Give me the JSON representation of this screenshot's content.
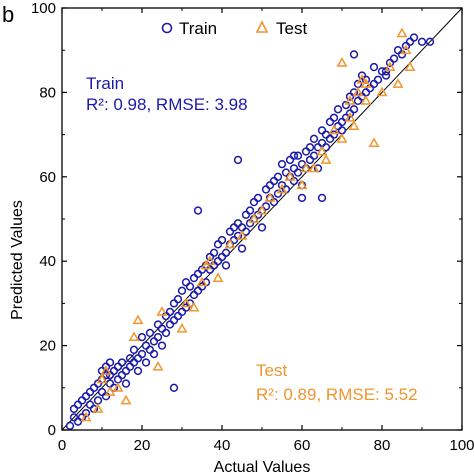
{
  "chart_data": {
    "type": "scatter",
    "panel_label": "b",
    "title": "",
    "xlabel": "Actual Values",
    "ylabel": "Predicted Values",
    "xlim": [
      0,
      100
    ],
    "ylim": [
      0,
      100
    ],
    "xticks": [
      "0",
      "20",
      "40",
      "60",
      "80",
      "100"
    ],
    "yticks": [
      "0",
      "20",
      "40",
      "60",
      "80",
      "100"
    ],
    "grid": false,
    "legend_position": "top-center",
    "reference_line": "y = x",
    "colors": {
      "train": "#1a1aa8",
      "test": "#f0962d",
      "reference_line": "#000000"
    },
    "series": [
      {
        "name": "Train",
        "marker": "circle",
        "annotation": {
          "title": "Train",
          "stats": "R²: 0.98, RMSE: 3.98"
        },
        "points": [
          [
            2,
            1
          ],
          [
            3,
            3
          ],
          [
            3,
            5
          ],
          [
            4,
            2
          ],
          [
            4,
            6
          ],
          [
            5,
            3
          ],
          [
            5,
            7
          ],
          [
            6,
            4
          ],
          [
            6,
            8
          ],
          [
            7,
            6
          ],
          [
            7,
            9
          ],
          [
            8,
            5
          ],
          [
            8,
            10
          ],
          [
            9,
            7
          ],
          [
            9,
            11
          ],
          [
            10,
            9
          ],
          [
            10,
            12
          ],
          [
            10,
            14
          ],
          [
            11,
            8
          ],
          [
            11,
            13
          ],
          [
            11,
            15
          ],
          [
            12,
            11
          ],
          [
            12,
            16
          ],
          [
            12,
            13
          ],
          [
            13,
            10
          ],
          [
            13,
            14
          ],
          [
            14,
            12
          ],
          [
            14,
            15
          ],
          [
            15,
            13
          ],
          [
            15,
            16
          ],
          [
            16,
            14
          ],
          [
            16,
            11
          ],
          [
            17,
            15
          ],
          [
            17,
            17
          ],
          [
            18,
            16
          ],
          [
            18,
            19
          ],
          [
            19,
            14
          ],
          [
            19,
            17
          ],
          [
            20,
            18
          ],
          [
            20,
            22
          ],
          [
            21,
            16
          ],
          [
            21,
            20
          ],
          [
            22,
            19
          ],
          [
            22,
            23
          ],
          [
            23,
            21
          ],
          [
            23,
            18
          ],
          [
            24,
            22
          ],
          [
            24,
            25
          ],
          [
            25,
            24
          ],
          [
            25,
            20
          ],
          [
            26,
            27
          ],
          [
            26,
            23
          ],
          [
            27,
            25
          ],
          [
            27,
            28
          ],
          [
            28,
            26
          ],
          [
            28,
            30
          ],
          [
            29,
            27
          ],
          [
            29,
            31
          ],
          [
            30,
            28
          ],
          [
            30,
            33
          ],
          [
            31,
            29
          ],
          [
            31,
            35
          ],
          [
            32,
            30
          ],
          [
            32,
            34
          ],
          [
            33,
            32
          ],
          [
            33,
            36
          ],
          [
            34,
            33
          ],
          [
            34,
            37
          ],
          [
            35,
            34
          ],
          [
            35,
            38
          ],
          [
            36,
            35
          ],
          [
            36,
            39
          ],
          [
            37,
            38
          ],
          [
            37,
            41
          ],
          [
            38,
            39
          ],
          [
            38,
            42
          ],
          [
            39,
            40
          ],
          [
            39,
            44
          ],
          [
            40,
            41
          ],
          [
            40,
            45
          ],
          [
            41,
            42
          ],
          [
            41,
            39
          ],
          [
            42,
            44
          ],
          [
            42,
            47
          ],
          [
            43,
            45
          ],
          [
            43,
            48
          ],
          [
            44,
            46
          ],
          [
            44,
            49
          ],
          [
            45,
            48
          ],
          [
            45,
            43
          ],
          [
            46,
            47
          ],
          [
            46,
            51
          ],
          [
            47,
            49
          ],
          [
            47,
            52
          ],
          [
            48,
            50
          ],
          [
            48,
            54
          ],
          [
            49,
            51
          ],
          [
            49,
            55
          ],
          [
            50,
            52
          ],
          [
            50,
            48
          ],
          [
            51,
            53
          ],
          [
            51,
            57
          ],
          [
            52,
            55
          ],
          [
            52,
            58
          ],
          [
            53,
            54
          ],
          [
            53,
            59
          ],
          [
            54,
            56
          ],
          [
            54,
            60
          ],
          [
            55,
            58
          ],
          [
            55,
            63
          ],
          [
            56,
            57
          ],
          [
            56,
            61
          ],
          [
            57,
            60
          ],
          [
            57,
            64
          ],
          [
            58,
            59
          ],
          [
            58,
            62
          ],
          [
            59,
            61
          ],
          [
            59,
            65
          ],
          [
            60,
            63
          ],
          [
            60,
            58
          ],
          [
            61,
            62
          ],
          [
            61,
            66
          ],
          [
            62,
            64
          ],
          [
            62,
            67
          ],
          [
            63,
            65
          ],
          [
            63,
            69
          ],
          [
            64,
            67
          ],
          [
            64,
            62
          ],
          [
            65,
            68
          ],
          [
            65,
            71
          ],
          [
            66,
            67
          ],
          [
            66,
            70
          ],
          [
            67,
            69
          ],
          [
            67,
            73
          ],
          [
            68,
            70
          ],
          [
            68,
            74
          ],
          [
            69,
            72
          ],
          [
            69,
            76
          ],
          [
            70,
            73
          ],
          [
            70,
            71
          ],
          [
            71,
            74
          ],
          [
            71,
            77
          ],
          [
            72,
            75
          ],
          [
            72,
            79
          ],
          [
            73,
            76
          ],
          [
            73,
            80
          ],
          [
            74,
            78
          ],
          [
            74,
            82
          ],
          [
            75,
            79
          ],
          [
            75,
            84
          ],
          [
            76,
            80
          ],
          [
            76,
            83
          ],
          [
            77,
            81
          ],
          [
            78,
            82
          ],
          [
            78,
            86
          ],
          [
            79,
            83
          ],
          [
            80,
            85
          ],
          [
            81,
            84
          ],
          [
            82,
            87
          ],
          [
            83,
            88
          ],
          [
            84,
            90
          ],
          [
            85,
            89
          ],
          [
            86,
            91
          ],
          [
            87,
            92
          ],
          [
            88,
            93
          ],
          [
            90,
            92
          ],
          [
            92,
            92
          ],
          [
            28,
            10
          ],
          [
            34,
            52
          ],
          [
            44,
            64
          ],
          [
            58,
            65
          ],
          [
            60,
            55
          ],
          [
            65,
            55
          ],
          [
            73,
            89
          ],
          [
            81,
            85
          ]
        ]
      },
      {
        "name": "Test",
        "marker": "triangle",
        "annotation": {
          "title": "Test",
          "stats": "R²: 0.89, RMSE: 5.52"
        },
        "points": [
          [
            6,
            3
          ],
          [
            9,
            5
          ],
          [
            10,
            12
          ],
          [
            11,
            14
          ],
          [
            12,
            9
          ],
          [
            14,
            10
          ],
          [
            16,
            7
          ],
          [
            18,
            22
          ],
          [
            19,
            26
          ],
          [
            24,
            15
          ],
          [
            25,
            28
          ],
          [
            30,
            24
          ],
          [
            31,
            30
          ],
          [
            33,
            29
          ],
          [
            35,
            35
          ],
          [
            36,
            39
          ],
          [
            37,
            40
          ],
          [
            39,
            36
          ],
          [
            42,
            44
          ],
          [
            45,
            46
          ],
          [
            48,
            50
          ],
          [
            50,
            52
          ],
          [
            52,
            55
          ],
          [
            55,
            57
          ],
          [
            57,
            60
          ],
          [
            60,
            58
          ],
          [
            61,
            62
          ],
          [
            63,
            62
          ],
          [
            66,
            64
          ],
          [
            68,
            71
          ],
          [
            70,
            69
          ],
          [
            72,
            74
          ],
          [
            73,
            72
          ],
          [
            75,
            83
          ],
          [
            76,
            78
          ],
          [
            78,
            68
          ],
          [
            80,
            80
          ],
          [
            82,
            86
          ],
          [
            84,
            82
          ],
          [
            85,
            94
          ],
          [
            86,
            90
          ],
          [
            87,
            86
          ],
          [
            65,
            66
          ],
          [
            70,
            87
          ],
          [
            72,
            78
          ],
          [
            76,
            82
          ],
          [
            74,
            80
          ]
        ]
      }
    ]
  }
}
